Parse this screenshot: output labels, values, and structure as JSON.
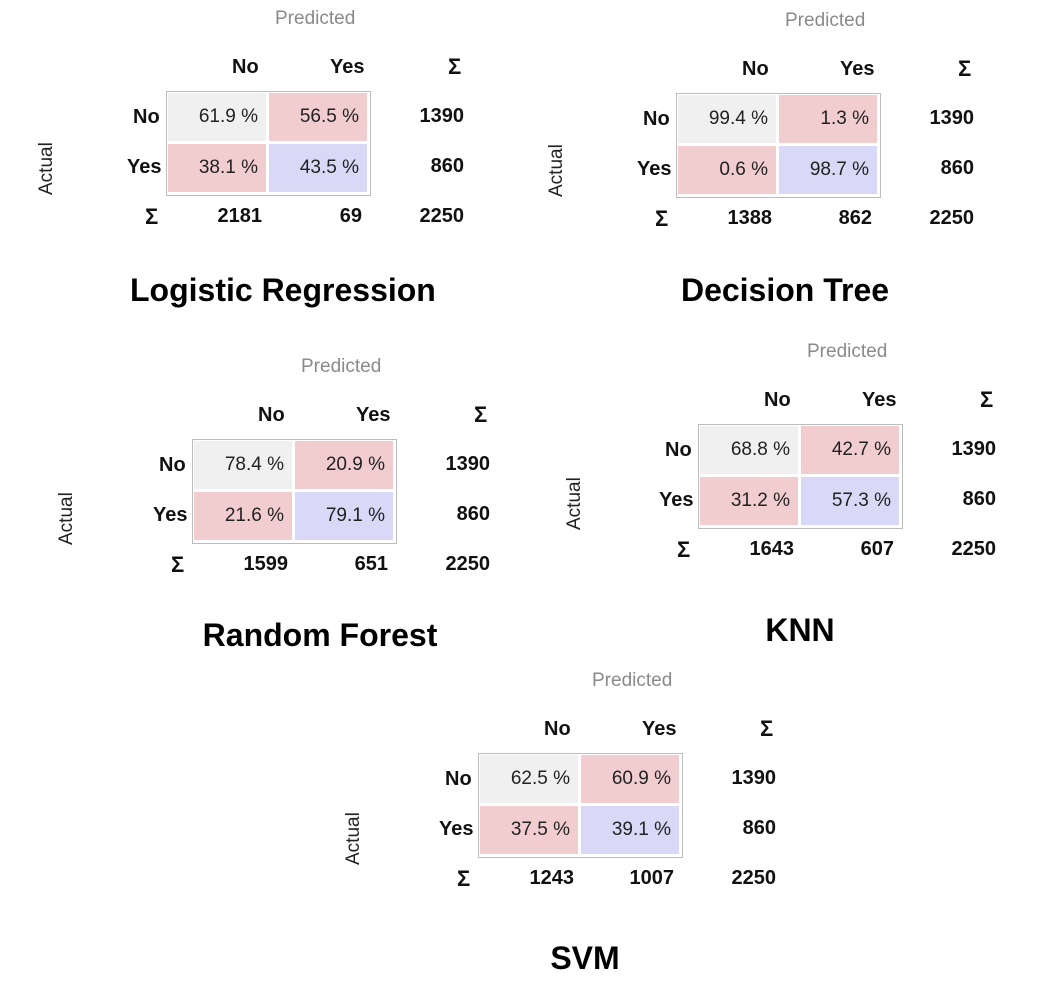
{
  "labels": {
    "predicted": "Predicted",
    "actual": "Actual",
    "no": "No",
    "yes": "Yes",
    "sigma": "Σ"
  },
  "colors": {
    "diagonal_no": "#f0f0f0",
    "off_diagonal": "#f2cdd0",
    "diagonal_yes": "#d9d8f7",
    "border": "#bdbdbd"
  },
  "chart_data": [
    {
      "type": "table",
      "title": "Logistic Regression",
      "columns": [
        "No",
        "Yes",
        "Σ"
      ],
      "rows": [
        "No",
        "Yes",
        "Σ"
      ],
      "cells": [
        [
          "61.9 %",
          "56.5 %"
        ],
        [
          "38.1 %",
          "43.5 %"
        ]
      ],
      "row_totals": [
        "1390",
        "860"
      ],
      "col_totals": [
        "2181",
        "69"
      ],
      "grand_total": "2250"
    },
    {
      "type": "table",
      "title": "Decision Tree",
      "columns": [
        "No",
        "Yes",
        "Σ"
      ],
      "rows": [
        "No",
        "Yes",
        "Σ"
      ],
      "cells": [
        [
          "99.4 %",
          "1.3 %"
        ],
        [
          "0.6 %",
          "98.7 %"
        ]
      ],
      "row_totals": [
        "1390",
        "860"
      ],
      "col_totals": [
        "1388",
        "862"
      ],
      "grand_total": "2250"
    },
    {
      "type": "table",
      "title": "Random Forest",
      "columns": [
        "No",
        "Yes",
        "Σ"
      ],
      "rows": [
        "No",
        "Yes",
        "Σ"
      ],
      "cells": [
        [
          "78.4 %",
          "20.9 %"
        ],
        [
          "21.6 %",
          "79.1 %"
        ]
      ],
      "row_totals": [
        "1390",
        "860"
      ],
      "col_totals": [
        "1599",
        "651"
      ],
      "grand_total": "2250"
    },
    {
      "type": "table",
      "title": "KNN",
      "columns": [
        "No",
        "Yes",
        "Σ"
      ],
      "rows": [
        "No",
        "Yes",
        "Σ"
      ],
      "cells": [
        [
          "68.8 %",
          "42.7 %"
        ],
        [
          "31.2 %",
          "57.3 %"
        ]
      ],
      "row_totals": [
        "1390",
        "860"
      ],
      "col_totals": [
        "1643",
        "607"
      ],
      "grand_total": "2250"
    },
    {
      "type": "table",
      "title": "SVM",
      "columns": [
        "No",
        "Yes",
        "Σ"
      ],
      "rows": [
        "No",
        "Yes",
        "Σ"
      ],
      "cells": [
        [
          "62.5 %",
          "60.9 %"
        ],
        [
          "37.5 %",
          "39.1 %"
        ]
      ],
      "row_totals": [
        "1390",
        "860"
      ],
      "col_totals": [
        "1243",
        "1007"
      ],
      "grand_total": "2250"
    }
  ]
}
